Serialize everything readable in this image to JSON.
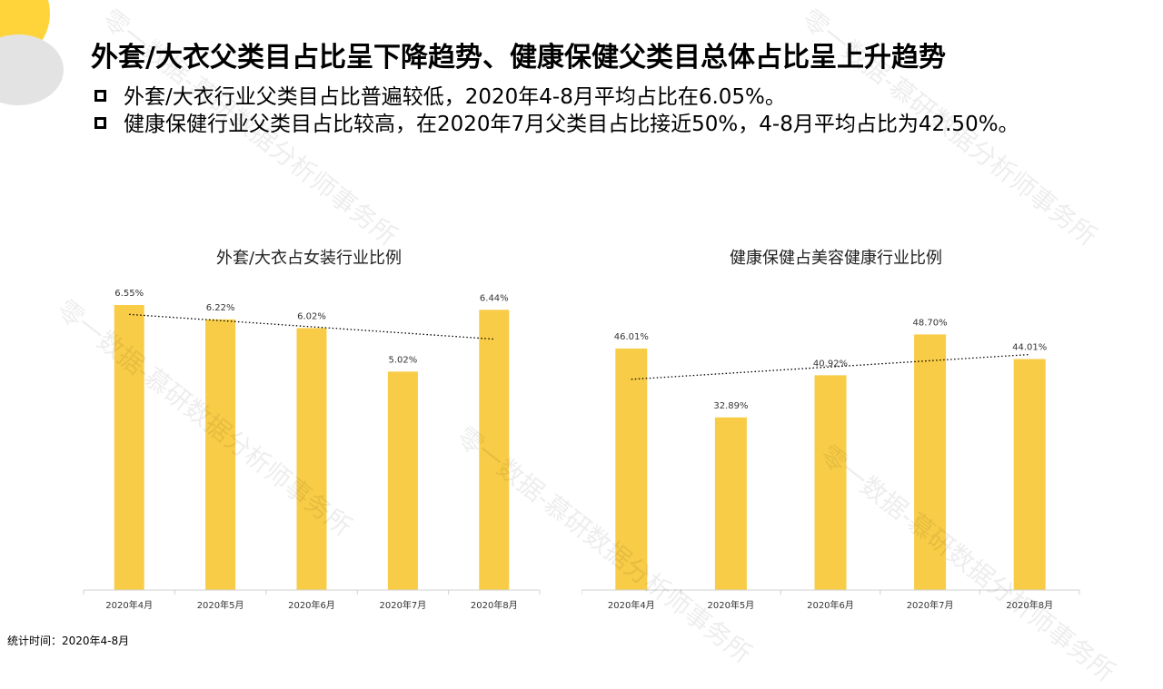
{
  "header": {
    "title": "外套/大衣父类目占比呈下降趋势、健康保健父类目总体占比呈上升趋势",
    "bullets": [
      "外套/大衣行业父类目占比普遍较低，2020年4-8月平均占比在6.05%。",
      "健康保健行业父类目占比较高，在2020年7月父类目占比接近50%，4-8月平均占比为42.50%。"
    ]
  },
  "footer": {
    "note": "统计时间：2020年4-8月"
  },
  "watermark": {
    "text": "零一数据-慕研数据分析师事务所"
  },
  "colors": {
    "bar": "#F8CC46",
    "trend": "#000000",
    "axis": "#D0D0D0"
  },
  "chart_data": [
    {
      "type": "bar",
      "title": "外套/大衣占女装行业比例",
      "categories": [
        "2020年4月",
        "2020年5月",
        "2020年6月",
        "2020年7月",
        "2020年8月"
      ],
      "values": [
        6.55,
        6.22,
        6.02,
        5.02,
        6.44
      ],
      "value_labels": [
        "6.55%",
        "6.22%",
        "6.02%",
        "5.02%",
        "6.44%"
      ],
      "ylim": [
        0,
        6.55
      ],
      "trendline": "linear",
      "grid": false
    },
    {
      "type": "bar",
      "title": "健康保健占美容健康行业比例",
      "categories": [
        "2020年4月",
        "2020年5月",
        "2020年6月",
        "2020年7月",
        "2020年8月"
      ],
      "values": [
        46.01,
        32.89,
        40.92,
        48.7,
        44.01
      ],
      "value_labels": [
        "46.01%",
        "32.89%",
        "40.92%",
        "48.70%",
        "44.01%"
      ],
      "ylim": [
        0,
        54.3
      ],
      "trendline": "linear",
      "grid": false
    }
  ]
}
